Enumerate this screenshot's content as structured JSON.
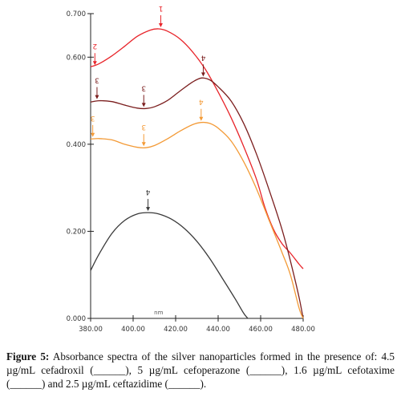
{
  "chart_data": {
    "type": "line",
    "xlabel": "nm",
    "ylabel": "",
    "xlim": [
      380,
      480
    ],
    "ylim": [
      0,
      0.7
    ],
    "x_ticks": [
      "380.00",
      "400.00",
      "420.00",
      "440.00",
      "460.00",
      "480.00"
    ],
    "y_ticks": [
      "0.000",
      "0.200",
      "0.400",
      "0.600",
      "0.700"
    ],
    "series": [
      {
        "color": "#e8242a",
        "points": [
          [
            380,
            0.578
          ],
          [
            384,
            0.585
          ],
          [
            390,
            0.603
          ],
          [
            396,
            0.625
          ],
          [
            402,
            0.648
          ],
          [
            408,
            0.662
          ],
          [
            412,
            0.665
          ],
          [
            416,
            0.66
          ],
          [
            422,
            0.642
          ],
          [
            428,
            0.612
          ],
          [
            434,
            0.572
          ],
          [
            440,
            0.52
          ],
          [
            446,
            0.462
          ],
          [
            452,
            0.395
          ],
          [
            458,
            0.32
          ],
          [
            462,
            0.255
          ],
          [
            466,
            0.205
          ],
          [
            470,
            0.172
          ],
          [
            474,
            0.15
          ],
          [
            478,
            0.125
          ],
          [
            480,
            0.114
          ]
        ],
        "markers": [
          {
            "x": 413,
            "y": 0.665,
            "label": "1"
          },
          {
            "x": 382,
            "y": 0.578,
            "label": "2"
          }
        ]
      },
      {
        "color": "#7b1e1e",
        "points": [
          [
            380,
            0.497
          ],
          [
            384,
            0.5
          ],
          [
            390,
            0.498
          ],
          [
            396,
            0.49
          ],
          [
            402,
            0.483
          ],
          [
            406,
            0.482
          ],
          [
            410,
            0.486
          ],
          [
            416,
            0.5
          ],
          [
            422,
            0.522
          ],
          [
            428,
            0.543
          ],
          [
            432,
            0.552
          ],
          [
            436,
            0.548
          ],
          [
            440,
            0.532
          ],
          [
            446,
            0.5
          ],
          [
            452,
            0.448
          ],
          [
            458,
            0.378
          ],
          [
            464,
            0.295
          ],
          [
            470,
            0.205
          ],
          [
            474,
            0.132
          ],
          [
            478,
            0.05
          ],
          [
            480,
            0.0
          ]
        ],
        "markers": [
          {
            "x": 383,
            "y": 0.5,
            "label": "3"
          },
          {
            "x": 405,
            "y": 0.482,
            "label": "3"
          },
          {
            "x": 433,
            "y": 0.552,
            "label": "4"
          }
        ]
      },
      {
        "color": "#f39a36",
        "points": [
          [
            380,
            0.412
          ],
          [
            384,
            0.413
          ],
          [
            390,
            0.41
          ],
          [
            396,
            0.4
          ],
          [
            402,
            0.393
          ],
          [
            406,
            0.392
          ],
          [
            410,
            0.397
          ],
          [
            416,
            0.412
          ],
          [
            422,
            0.43
          ],
          [
            428,
            0.445
          ],
          [
            432,
            0.45
          ],
          [
            436,
            0.448
          ],
          [
            440,
            0.437
          ],
          [
            446,
            0.408
          ],
          [
            452,
            0.36
          ],
          [
            458,
            0.298
          ],
          [
            464,
            0.225
          ],
          [
            470,
            0.152
          ],
          [
            474,
            0.1
          ],
          [
            478,
            0.025
          ],
          [
            480,
            0.0
          ]
        ],
        "markers": [
          {
            "x": 381,
            "y": 0.413,
            "label": "3"
          },
          {
            "x": 405,
            "y": 0.392,
            "label": "3"
          },
          {
            "x": 432,
            "y": 0.45,
            "label": "4"
          }
        ]
      },
      {
        "color": "#3a3a3a",
        "points": [
          [
            380,
            0.11
          ],
          [
            384,
            0.148
          ],
          [
            390,
            0.195
          ],
          [
            396,
            0.225
          ],
          [
            402,
            0.24
          ],
          [
            407,
            0.243
          ],
          [
            412,
            0.24
          ],
          [
            418,
            0.228
          ],
          [
            424,
            0.207
          ],
          [
            430,
            0.177
          ],
          [
            436,
            0.138
          ],
          [
            442,
            0.092
          ],
          [
            448,
            0.045
          ],
          [
            452,
            0.012
          ],
          [
            454,
            0.0
          ]
        ],
        "markers": [
          {
            "x": 407,
            "y": 0.243,
            "label": "4"
          }
        ]
      }
    ]
  },
  "caption": {
    "label": "Figure 5:",
    "text": " Absorbance spectra of the silver nanoparticles formed in the presence of: 4.5 µg/mL cefadroxil (______), 5 µg/mL cefoperazone (______), 1.6 µg/mL cefotaxime (______) and 2.5 µg/mL ceftazidime (______)."
  }
}
